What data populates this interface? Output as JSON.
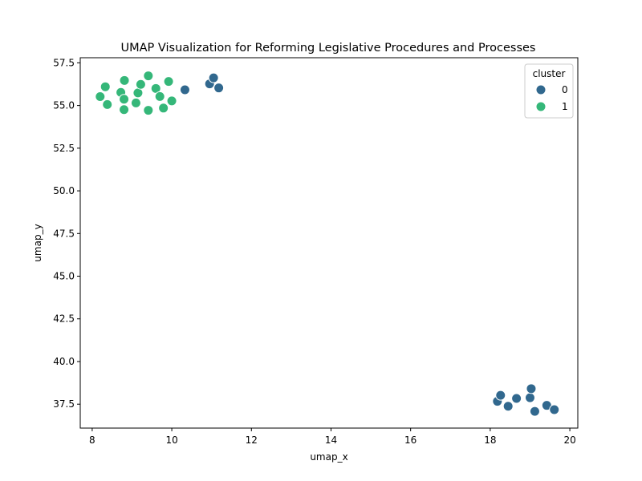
{
  "chart_data": {
    "type": "scatter",
    "title": "UMAP Visualization for Reforming Legislative Procedures and Processes",
    "xlabel": "umap_x",
    "ylabel": "umap_y",
    "xlim": [
      7.7,
      20.2
    ],
    "ylim": [
      36.1,
      57.8
    ],
    "xticks": [
      "8",
      "10",
      "12",
      "14",
      "16",
      "18",
      "20"
    ],
    "yticks": [
      "37.5",
      "40.0",
      "42.5",
      "45.0",
      "47.5",
      "50.0",
      "52.5",
      "55.0",
      "57.5"
    ],
    "grid": false,
    "legend": {
      "title": "cluster",
      "placement": "top-right",
      "entries": [
        "0",
        "1"
      ]
    },
    "series": [
      {
        "name": "0",
        "color": "#31688e",
        "points": [
          [
            10.33,
            55.92
          ],
          [
            10.95,
            56.27
          ],
          [
            11.05,
            56.62
          ],
          [
            11.18,
            56.03
          ],
          [
            18.18,
            37.67
          ],
          [
            18.26,
            38.02
          ],
          [
            18.45,
            37.38
          ],
          [
            18.66,
            37.84
          ],
          [
            19.0,
            37.88
          ],
          [
            19.03,
            38.41
          ],
          [
            19.12,
            37.08
          ],
          [
            19.42,
            37.43
          ],
          [
            19.61,
            37.18
          ]
        ]
      },
      {
        "name": "1",
        "color": "#35b779",
        "points": [
          [
            8.2,
            55.52
          ],
          [
            8.33,
            56.1
          ],
          [
            8.38,
            55.06
          ],
          [
            8.72,
            55.77
          ],
          [
            8.8,
            55.37
          ],
          [
            8.81,
            56.47
          ],
          [
            8.8,
            54.76
          ],
          [
            9.1,
            55.15
          ],
          [
            9.15,
            55.74
          ],
          [
            9.22,
            56.24
          ],
          [
            9.41,
            56.74
          ],
          [
            9.41,
            54.72
          ],
          [
            9.6,
            56.0
          ],
          [
            9.7,
            55.53
          ],
          [
            9.79,
            54.85
          ],
          [
            9.92,
            56.41
          ],
          [
            10.0,
            55.27
          ]
        ]
      }
    ]
  }
}
